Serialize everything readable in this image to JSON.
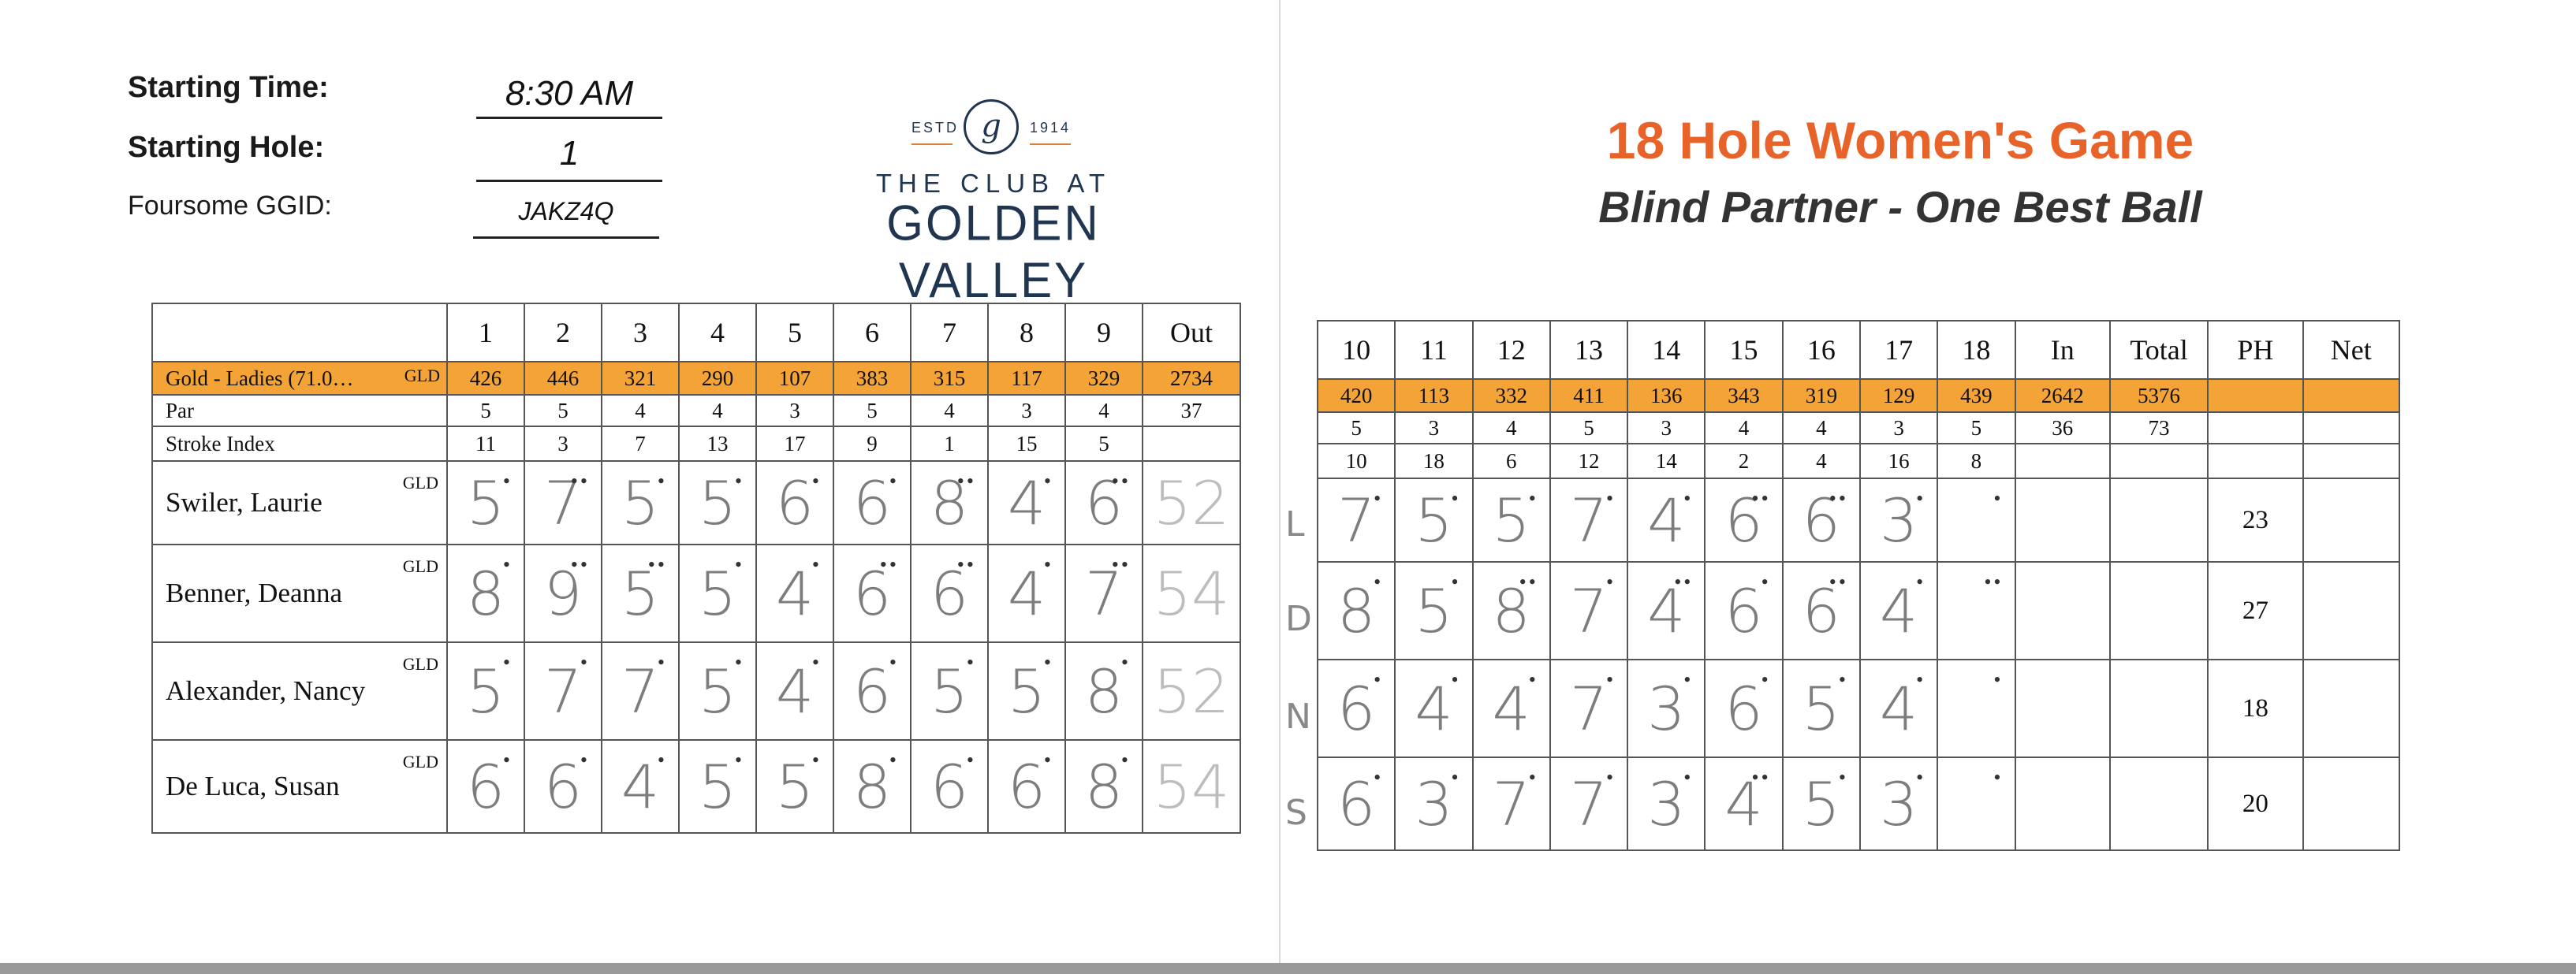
{
  "header": {
    "starting_time_label": "Starting Time:",
    "starting_time": "8:30 AM",
    "starting_hole_label": "Starting Hole:",
    "starting_hole": "1",
    "ggid_label": "Foursome GGID:",
    "ggid": "JAKZ4Q"
  },
  "logo": {
    "estd": "ESTD",
    "year": "1914",
    "emblem_letter": "g",
    "club_at": "THE CLUB AT",
    "club_name": "GOLDEN VALLEY"
  },
  "game": {
    "title": "18 Hole Women's Game",
    "subtitle": "Blind Partner - One Best Ball"
  },
  "colors": {
    "yardage_row": "#f4a337",
    "title": "#e8632a",
    "brand": "#1f3550"
  },
  "front": {
    "holes": [
      "1",
      "2",
      "3",
      "4",
      "5",
      "6",
      "7",
      "8",
      "9"
    ],
    "out_label": "Out",
    "tee_name": "Gold - Ladies (71.0…",
    "tee_tag": "GLD",
    "yardages": [
      "426",
      "446",
      "321",
      "290",
      "107",
      "383",
      "315",
      "117",
      "329"
    ],
    "out_yardage": "2734",
    "par_label": "Par",
    "par": [
      "5",
      "5",
      "4",
      "4",
      "3",
      "5",
      "4",
      "3",
      "4"
    ],
    "out_par": "37",
    "si_label": "Stroke Index",
    "stroke_index": [
      "11",
      "3",
      "7",
      "13",
      "17",
      "9",
      "1",
      "15",
      "5"
    ]
  },
  "back": {
    "holes": [
      "10",
      "11",
      "12",
      "13",
      "14",
      "15",
      "16",
      "17",
      "18"
    ],
    "in_label": "In",
    "total_label": "Total",
    "ph_label": "PH",
    "net_label": "Net",
    "yardages": [
      "420",
      "113",
      "332",
      "411",
      "136",
      "343",
      "319",
      "129",
      "439"
    ],
    "in_yardage": "2642",
    "total_yardage": "5376",
    "par": [
      "5",
      "3",
      "4",
      "5",
      "3",
      "4",
      "4",
      "3",
      "5"
    ],
    "in_par": "36",
    "total_par": "73",
    "stroke_index": [
      "10",
      "18",
      "6",
      "12",
      "14",
      "2",
      "4",
      "16",
      "8"
    ]
  },
  "players": [
    {
      "name": "Swiler, Laurie",
      "tee": "GLD",
      "initial": "L",
      "front_scores": [
        "5",
        "7",
        "5",
        "5",
        "6",
        "6",
        "8",
        "4",
        "6"
      ],
      "front_dots": [
        "•",
        "••",
        "•",
        "•",
        "•",
        "•",
        "••",
        "•",
        "••"
      ],
      "out": "52",
      "back_scores": [
        "7",
        "5",
        "5",
        "7",
        "4",
        "6",
        "6",
        "3",
        ""
      ],
      "back_dots": [
        "•",
        "•",
        "•",
        "•",
        "•",
        "••",
        "••",
        "•",
        "•"
      ],
      "in": "",
      "total": "",
      "ph": "23",
      "net": ""
    },
    {
      "name": "Benner, Deanna",
      "tee": "GLD",
      "initial": "D",
      "front_scores": [
        "8",
        "9",
        "5",
        "5",
        "4",
        "6",
        "6",
        "4",
        "7"
      ],
      "front_dots": [
        "•",
        "••",
        "••",
        "•",
        "•",
        "••",
        "••",
        "•",
        "••"
      ],
      "out": "54",
      "back_scores": [
        "8",
        "5",
        "8",
        "7",
        "4",
        "6",
        "6",
        "4",
        ""
      ],
      "back_dots": [
        "•",
        "•",
        "••",
        "•",
        "••",
        "•",
        "••",
        "•",
        "••"
      ],
      "in": "",
      "total": "",
      "ph": "27",
      "net": ""
    },
    {
      "name": "Alexander, Nancy",
      "tee": "GLD",
      "initial": "N",
      "front_scores": [
        "5",
        "7",
        "7",
        "5",
        "4",
        "6",
        "5",
        "5",
        "8"
      ],
      "front_dots": [
        "•",
        "•",
        "•",
        "•",
        "•",
        "•",
        "•",
        "•",
        "•"
      ],
      "out": "52",
      "back_scores": [
        "6",
        "4",
        "4",
        "7",
        "3",
        "6",
        "5",
        "4",
        ""
      ],
      "back_dots": [
        "•",
        "•",
        "•",
        "•",
        "•",
        "•",
        "•",
        "•",
        "•"
      ],
      "in": "",
      "total": "",
      "ph": "18",
      "net": ""
    },
    {
      "name": "De Luca, Susan",
      "tee": "GLD",
      "initial": "S",
      "front_scores": [
        "6",
        "6",
        "4",
        "5",
        "5",
        "8",
        "6",
        "6",
        "8"
      ],
      "front_dots": [
        "•",
        "•",
        "•",
        "•",
        "•",
        "•",
        "•",
        "•",
        "•"
      ],
      "out": "54",
      "back_scores": [
        "6",
        "3",
        "7",
        "7",
        "3",
        "4",
        "5",
        "3",
        ""
      ],
      "back_dots": [
        "•",
        "•",
        "•",
        "•",
        "•",
        "••",
        "•",
        "•",
        "•"
      ],
      "in": "",
      "total": "",
      "ph": "20",
      "net": ""
    }
  ]
}
